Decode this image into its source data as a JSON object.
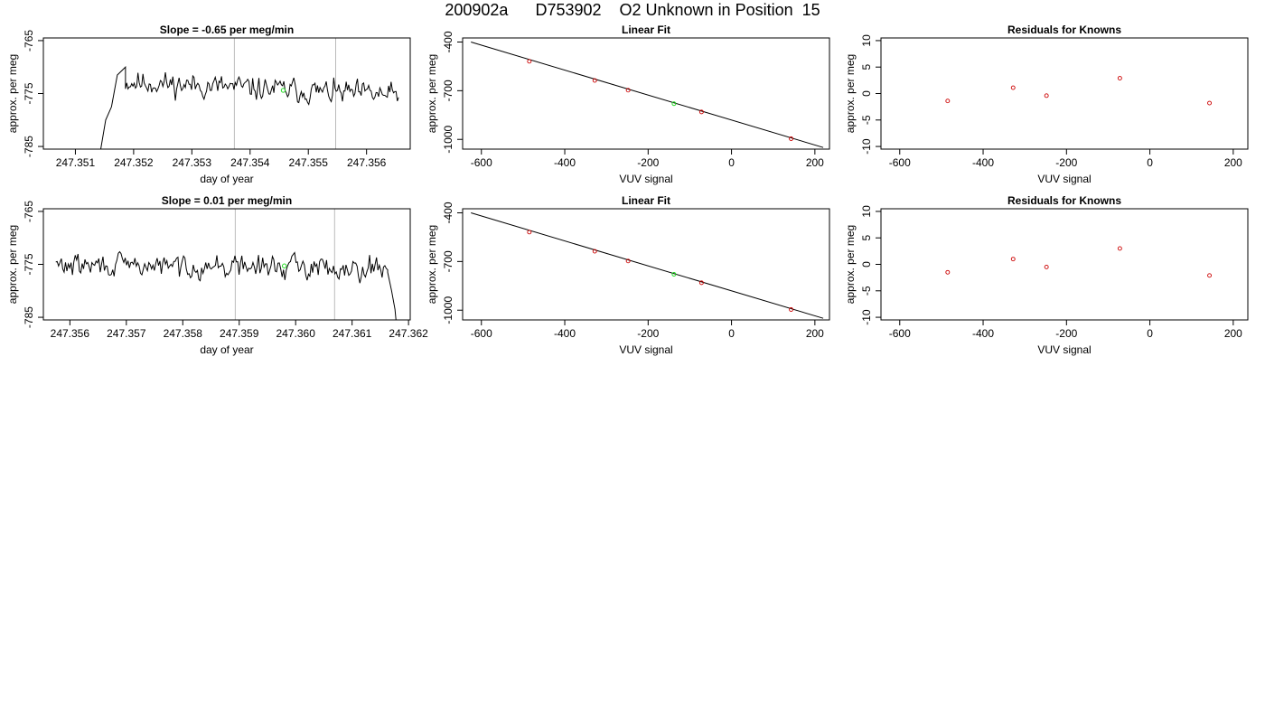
{
  "figure": {
    "title": "200902a      D753902    O2 Unknown in Position  15"
  },
  "colors": {
    "trace": "#000000",
    "fit_line": "#000000",
    "known_points": "#cc0000",
    "unknown_point": "#22dd22",
    "marker_lines": "#bbbbbb",
    "frame": "#000000"
  },
  "chart_data": [
    {
      "id": "ts1",
      "type": "line",
      "title": "Slope =  -0.65  per meg/min",
      "xlabel": "day of year",
      "ylabel": "approx. per meg",
      "xlim": [
        247.35045,
        247.35675
      ],
      "ylim": [
        -785.5,
        -764.5
      ],
      "xticks": [
        247.351,
        247.352,
        247.353,
        247.354,
        247.355,
        247.356
      ],
      "xtick_labels": [
        "247.351",
        "247.352",
        "247.353",
        "247.354",
        "247.355",
        "247.356"
      ],
      "yticks": [
        -765,
        -775,
        -785
      ],
      "ytick_labels": [
        "-765",
        "-775",
        "-785"
      ],
      "vlines": [
        247.35373,
        247.35547
      ],
      "unknown_point": {
        "x": 247.35457,
        "y": -774.4
      },
      "series": [
        {
          "x_start": 247.35142,
          "x_end": 247.35655,
          "n": 220,
          "seed": 11,
          "base": -772.8,
          "noise": 1.6,
          "drift": -2.6,
          "start_points": [
            [
              247.35142,
              -786.5
            ],
            [
              247.35152,
              -780.0
            ],
            [
              247.35162,
              -777.5
            ],
            [
              247.35172,
              -771.5
            ],
            [
              247.35186,
              -770.0
            ]
          ]
        }
      ]
    },
    {
      "id": "fit1",
      "type": "scatter",
      "title": "Linear Fit",
      "xlabel": "VUV signal",
      "ylabel": "approx. per meg",
      "xlim": [
        -645,
        235
      ],
      "ylim": [
        -1060,
        -375
      ],
      "xticks": [
        -600,
        -400,
        -200,
        0,
        200
      ],
      "xtick_labels": [
        "-600",
        "-400",
        "-200",
        "0",
        "200"
      ],
      "yticks": [
        -400,
        -700,
        -1000
      ],
      "ytick_labels": [
        "-400",
        "-700",
        "-1000"
      ],
      "line": {
        "x": [
          -625,
          220
        ],
        "y": [
          -400,
          -1050
        ]
      },
      "known_points": {
        "x": [
          -485,
          -328,
          -248,
          -72,
          143
        ],
        "y": [
          -519,
          -637,
          -697,
          -831,
          -996
        ]
      },
      "unknown_point": {
        "x": -138,
        "y": -780
      }
    },
    {
      "id": "res1",
      "type": "scatter",
      "title": "Residuals for Knowns",
      "xlabel": "VUV signal",
      "ylabel": "approx. per meg",
      "xlim": [
        -645,
        235
      ],
      "ylim": [
        -10.5,
        10.5
      ],
      "xticks": [
        -600,
        -400,
        -200,
        0,
        200
      ],
      "xtick_labels": [
        "-600",
        "-400",
        "-200",
        "0",
        "200"
      ],
      "yticks": [
        -10,
        -5,
        0,
        5,
        10
      ],
      "ytick_labels": [
        "-10",
        "-5",
        "0",
        "5",
        "10"
      ],
      "known_points": {
        "x": [
          -485,
          -328,
          -248,
          -72,
          143
        ],
        "y": [
          -1.4,
          1.1,
          -0.4,
          2.9,
          -1.8
        ]
      }
    },
    {
      "id": "ts2",
      "type": "line",
      "title": "Slope =  0.01  per meg/min",
      "xlabel": "day of year",
      "ylabel": "approx. per meg",
      "xlim": [
        247.35553,
        247.36203
      ],
      "ylim": [
        -785.5,
        -764.5
      ],
      "xticks": [
        247.356,
        247.357,
        247.358,
        247.359,
        247.36,
        247.361,
        247.362
      ],
      "xtick_labels": [
        "247.356",
        "247.357",
        "247.358",
        "247.359",
        "247.360",
        "247.361",
        "247.362"
      ],
      "yticks": [
        -765,
        -775,
        -785
      ],
      "ytick_labels": [
        "-765",
        "-775",
        "-785"
      ],
      "vlines": [
        247.35893,
        247.36069
      ],
      "unknown_point": {
        "x": 247.3598,
        "y": -775.3
      },
      "series": [
        {
          "x_start": 247.35575,
          "x_end": 247.36178,
          "n": 240,
          "seed": 29,
          "base": -775.2,
          "noise": 1.5,
          "drift": -0.4,
          "end_points": [
            [
              247.36163,
              -776.5
            ],
            [
              247.3617,
              -780.0
            ],
            [
              247.36176,
              -783.5
            ],
            [
              247.3618,
              -788.0
            ]
          ]
        }
      ]
    },
    {
      "id": "fit2",
      "type": "scatter",
      "title": "Linear Fit",
      "xlabel": "VUV signal",
      "ylabel": "approx. per meg",
      "xlim": [
        -645,
        235
      ],
      "ylim": [
        -1060,
        -375
      ],
      "xticks": [
        -600,
        -400,
        -200,
        0,
        200
      ],
      "xtick_labels": [
        "-600",
        "-400",
        "-200",
        "0",
        "200"
      ],
      "yticks": [
        -400,
        -700,
        -1000
      ],
      "ytick_labels": [
        "-400",
        "-700",
        "-1000"
      ],
      "line": {
        "x": [
          -625,
          220
        ],
        "y": [
          -400,
          -1050
        ]
      },
      "known_points": {
        "x": [
          -485,
          -328,
          -248,
          -72,
          143
        ],
        "y": [
          -519,
          -637,
          -697,
          -831,
          -996
        ]
      },
      "unknown_point": {
        "x": -138,
        "y": -779
      }
    },
    {
      "id": "res2",
      "type": "scatter",
      "title": "Residuals for Knowns",
      "xlabel": "VUV signal",
      "ylabel": "approx. per meg",
      "xlim": [
        -645,
        235
      ],
      "ylim": [
        -10.5,
        10.5
      ],
      "xticks": [
        -600,
        -400,
        -200,
        0,
        200
      ],
      "xtick_labels": [
        "-600",
        "-400",
        "-200",
        "0",
        "200"
      ],
      "yticks": [
        -10,
        -5,
        0,
        5,
        10
      ],
      "ytick_labels": [
        "-10",
        "-5",
        "0",
        "5",
        "10"
      ],
      "known_points": {
        "x": [
          -485,
          -328,
          -248,
          -72,
          143
        ],
        "y": [
          -1.5,
          1.0,
          -0.5,
          3.0,
          -2.1
        ]
      }
    }
  ]
}
